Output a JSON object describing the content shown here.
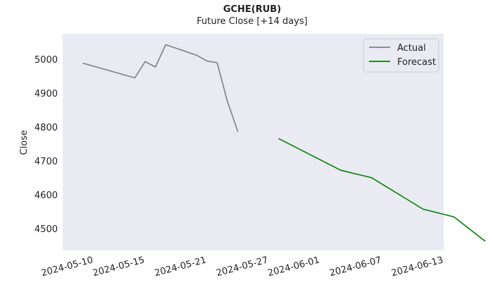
{
  "chart_data": {
    "type": "line",
    "title": "GCHE(RUB)",
    "subtitle": "Future Close [+14 days]",
    "xlabel": "",
    "ylabel": "Close",
    "x_is_date": true,
    "xlim": [
      "2024-05-07",
      "2024-06-13"
    ],
    "ylim": [
      4435,
      5075
    ],
    "yticks": [
      4500,
      4600,
      4700,
      4800,
      4900,
      5000
    ],
    "xticks": [
      "2024-05-10",
      "2024-05-15",
      "2024-05-21",
      "2024-05-27",
      "2024-06-01",
      "2024-06-07",
      "2024-06-13"
    ],
    "grid": false,
    "legend": "top-right",
    "series": [
      {
        "name": "Actual",
        "color": "#808080",
        "points": [
          {
            "x": "2024-05-09",
            "y": 4988
          },
          {
            "x": "2024-05-14",
            "y": 4945
          },
          {
            "x": "2024-05-15",
            "y": 4993
          },
          {
            "x": "2024-05-16",
            "y": 4977
          },
          {
            "x": "2024-05-17",
            "y": 5043
          },
          {
            "x": "2024-05-20",
            "y": 5012
          },
          {
            "x": "2024-05-21",
            "y": 4995
          },
          {
            "x": "2024-05-22",
            "y": 4990
          },
          {
            "x": "2024-05-23",
            "y": 4875
          },
          {
            "x": "2024-05-24",
            "y": 4787
          }
        ]
      },
      {
        "name": "Forecast",
        "color": "#008000",
        "points": [
          {
            "x": "2024-05-28",
            "y": 4765
          },
          {
            "x": "2024-06-03",
            "y": 4672
          },
          {
            "x": "2024-06-06",
            "y": 4650
          },
          {
            "x": "2024-06-11",
            "y": 4557
          },
          {
            "x": "2024-06-14",
            "y": 4534
          },
          {
            "x": "2024-06-17",
            "y": 4463
          }
        ]
      }
    ]
  }
}
